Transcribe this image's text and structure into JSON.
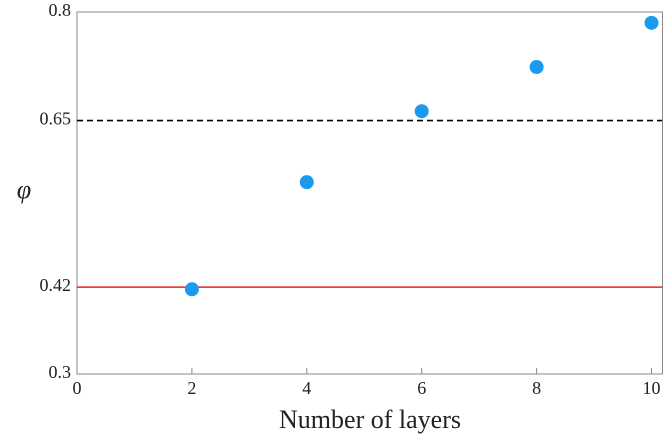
{
  "chart_data": {
    "type": "scatter",
    "x_label": "Number of layers",
    "y_label": "φ",
    "x": [
      2,
      4,
      6,
      8,
      10
    ],
    "values": [
      0.417,
      0.565,
      0.663,
      0.724,
      0.785
    ],
    "color": "#1a9bf0",
    "xlim": [
      0,
      10.2
    ],
    "ylim": [
      0.3,
      0.8
    ],
    "xticks": [
      0,
      2,
      4,
      6,
      8,
      10
    ],
    "yticks": [
      0.3,
      0.42,
      0.65,
      0.8
    ],
    "reference_lines": [
      {
        "value": 0.65,
        "color": "#000000",
        "style": "dashed"
      },
      {
        "value": 0.42,
        "color": "#e8221c",
        "style": "solid"
      }
    ]
  }
}
